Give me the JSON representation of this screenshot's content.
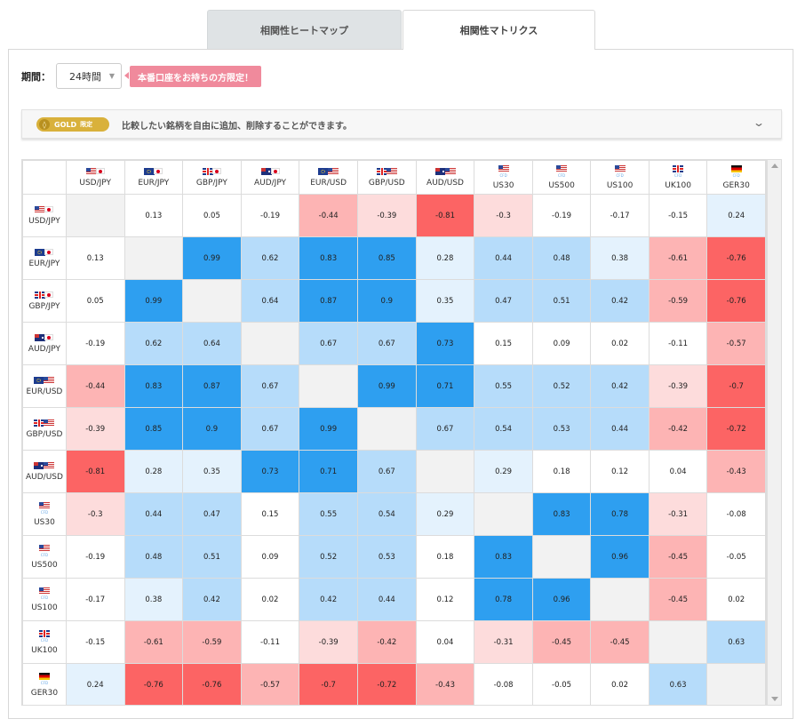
{
  "tabs": [
    {
      "label": "相関性ヒートマップ",
      "active": false
    },
    {
      "label": "相関性マトリクス",
      "active": true
    }
  ],
  "period": {
    "label": "期間：",
    "value": "24時間"
  },
  "promo": {
    "text": "本番口座をお持ちの方限定！"
  },
  "gold": {
    "badge": "GOLD",
    "limited": "限定",
    "text": "比較したい銘柄を自由に追加、削除することができます。"
  },
  "colors": {
    "strong_positive": "#2e9ff0",
    "positive": "#b6dcfa",
    "weak_positive": "#e4f2fd",
    "neutral": "#ffffff",
    "weak_negative": "#fddcdc",
    "negative": "#fdb4b4",
    "strong_negative": "#fc6464",
    "diagonal": "#f2f2f2"
  },
  "matrix": {
    "symbols": [
      {
        "name": "USD/JPY",
        "flags": [
          "us",
          "jp"
        ],
        "cfd": false
      },
      {
        "name": "EUR/JPY",
        "flags": [
          "eu",
          "jp"
        ],
        "cfd": false
      },
      {
        "name": "GBP/JPY",
        "flags": [
          "gb",
          "jp"
        ],
        "cfd": false
      },
      {
        "name": "AUD/JPY",
        "flags": [
          "au",
          "jp"
        ],
        "cfd": false
      },
      {
        "name": "EUR/USD",
        "flags": [
          "eu",
          "us"
        ],
        "cfd": false
      },
      {
        "name": "GBP/USD",
        "flags": [
          "gb",
          "us"
        ],
        "cfd": false
      },
      {
        "name": "AUD/USD",
        "flags": [
          "au",
          "us"
        ],
        "cfd": false
      },
      {
        "name": "US30",
        "flags": [
          "us"
        ],
        "cfd": true
      },
      {
        "name": "US500",
        "flags": [
          "us"
        ],
        "cfd": true
      },
      {
        "name": "US100",
        "flags": [
          "us"
        ],
        "cfd": true
      },
      {
        "name": "UK100",
        "flags": [
          "gb"
        ],
        "cfd": true
      },
      {
        "name": "GER30",
        "flags": [
          "de"
        ],
        "cfd": true
      }
    ],
    "cfd_tag": "CFD",
    "values": [
      [
        null,
        "0.13",
        "0.05",
        "-0.19",
        "-0.44",
        "-0.39",
        "-0.81",
        "-0.3",
        "-0.19",
        "-0.17",
        "-0.15",
        "0.24"
      ],
      [
        "0.13",
        null,
        "0.99",
        "0.62",
        "0.83",
        "0.85",
        "0.28",
        "0.44",
        "0.48",
        "0.38",
        "-0.61",
        "-0.76"
      ],
      [
        "0.05",
        "0.99",
        null,
        "0.64",
        "0.87",
        "0.9",
        "0.35",
        "0.47",
        "0.51",
        "0.42",
        "-0.59",
        "-0.76"
      ],
      [
        "-0.19",
        "0.62",
        "0.64",
        null,
        "0.67",
        "0.67",
        "0.73",
        "0.15",
        "0.09",
        "0.02",
        "-0.11",
        "-0.57"
      ],
      [
        "-0.44",
        "0.83",
        "0.87",
        "0.67",
        null,
        "0.99",
        "0.71",
        "0.55",
        "0.52",
        "0.42",
        "-0.39",
        "-0.7"
      ],
      [
        "-0.39",
        "0.85",
        "0.9",
        "0.67",
        "0.99",
        null,
        "0.67",
        "0.54",
        "0.53",
        "0.44",
        "-0.42",
        "-0.72"
      ],
      [
        "-0.81",
        "0.28",
        "0.35",
        "0.73",
        "0.71",
        "0.67",
        null,
        "0.29",
        "0.18",
        "0.12",
        "0.04",
        "-0.43"
      ],
      [
        "-0.3",
        "0.44",
        "0.47",
        "0.15",
        "0.55",
        "0.54",
        "0.29",
        null,
        "0.83",
        "0.78",
        "-0.31",
        "-0.08"
      ],
      [
        "-0.19",
        "0.48",
        "0.51",
        "0.09",
        "0.52",
        "0.53",
        "0.18",
        "0.83",
        null,
        "0.96",
        "-0.45",
        "-0.05"
      ],
      [
        "-0.17",
        "0.38",
        "0.42",
        "0.02",
        "0.42",
        "0.44",
        "0.12",
        "0.78",
        "0.96",
        null,
        "-0.45",
        "0.02"
      ],
      [
        "-0.15",
        "-0.61",
        "-0.59",
        "-0.11",
        "-0.39",
        "-0.42",
        "0.04",
        "-0.31",
        "-0.45",
        "-0.45",
        null,
        "0.63"
      ],
      [
        "0.24",
        "-0.76",
        "-0.76",
        "-0.57",
        "-0.7",
        "-0.72",
        "-0.43",
        "-0.08",
        "-0.05",
        "0.02",
        "0.63",
        null
      ]
    ]
  }
}
